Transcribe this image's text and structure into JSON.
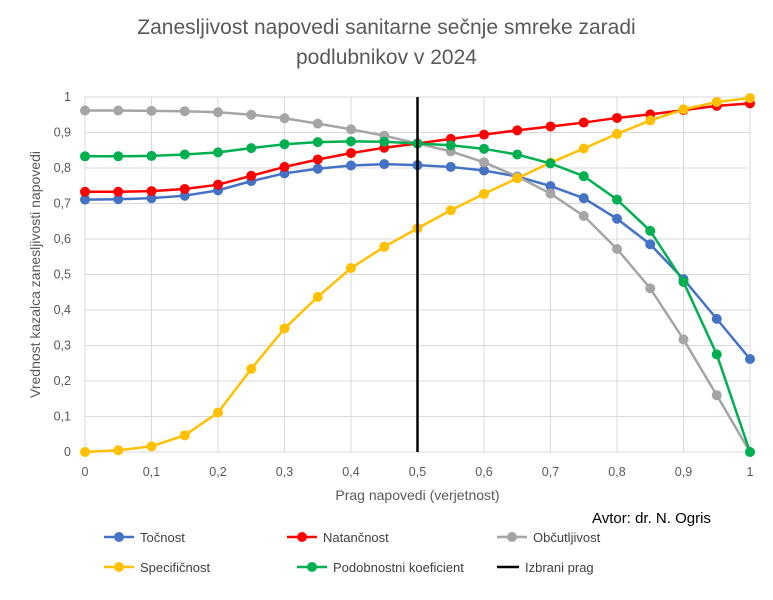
{
  "chart_data": {
    "type": "line",
    "title_line1": "Zanesljivost napovedi sanitarne sečnje smreke zaradi",
    "title_line2": "podlubnikov v 2024",
    "xlabel": "Prag napovedi (verjetnost)",
    "ylabel": "Vrednost kazalca zanesljivosti napovedi",
    "xlim": [
      0,
      1
    ],
    "ylim": [
      0,
      1
    ],
    "x_ticks": [
      "0",
      "0,1",
      "0,2",
      "0,3",
      "0,4",
      "0,5",
      "0,6",
      "0,7",
      "0,8",
      "0,9",
      "1"
    ],
    "y_ticks": [
      "0",
      "0,1",
      "0,2",
      "0,3",
      "0,4",
      "0,5",
      "0,6",
      "0,7",
      "0,8",
      "0,9",
      "1"
    ],
    "grid": true,
    "legend_position": "bottom",
    "x": [
      0,
      0.05,
      0.1,
      0.15,
      0.2,
      0.25,
      0.3,
      0.35,
      0.4,
      0.45,
      0.5,
      0.55,
      0.6,
      0.65,
      0.7,
      0.75,
      0.8,
      0.85,
      0.9,
      0.95,
      1.0
    ],
    "series": [
      {
        "name": "Točnost",
        "color": "#4472C4",
        "values": [
          0.711,
          0.712,
          0.715,
          0.722,
          0.737,
          0.763,
          0.785,
          0.798,
          0.807,
          0.811,
          0.808,
          0.803,
          0.793,
          0.776,
          0.749,
          0.715,
          0.657,
          0.585,
          0.487,
          0.375,
          0.262
        ]
      },
      {
        "name": "Natančnost",
        "color": "#FF0000",
        "values": [
          0.733,
          0.733,
          0.735,
          0.741,
          0.753,
          0.778,
          0.803,
          0.824,
          0.842,
          0.857,
          0.869,
          0.882,
          0.894,
          0.906,
          0.917,
          0.928,
          0.941,
          0.951,
          0.963,
          0.975,
          0.982
        ]
      },
      {
        "name": "Občutljivost",
        "color": "#A5A5A5",
        "values": [
          0.962,
          0.962,
          0.961,
          0.96,
          0.957,
          0.95,
          0.94,
          0.925,
          0.909,
          0.891,
          0.869,
          0.847,
          0.816,
          0.776,
          0.728,
          0.665,
          0.572,
          0.461,
          0.317,
          0.16,
          0.0
        ]
      },
      {
        "name": "Specifičnost",
        "color": "#FFC000",
        "values": [
          0.0,
          0.005,
          0.016,
          0.047,
          0.111,
          0.234,
          0.348,
          0.437,
          0.518,
          0.578,
          0.63,
          0.681,
          0.727,
          0.771,
          0.815,
          0.855,
          0.896,
          0.934,
          0.965,
          0.986,
          0.997
        ]
      },
      {
        "name": "Podobnostni koeficient",
        "color": "#00B050",
        "values": [
          0.833,
          0.833,
          0.834,
          0.838,
          0.844,
          0.856,
          0.867,
          0.873,
          0.875,
          0.874,
          0.869,
          0.864,
          0.854,
          0.838,
          0.813,
          0.777,
          0.711,
          0.623,
          0.479,
          0.275,
          0.0
        ]
      }
    ],
    "threshold": {
      "name": "Izbrani prag",
      "x": 0.5,
      "color": "#000000"
    }
  },
  "author_note": "Avtor: dr. N. Ogris"
}
